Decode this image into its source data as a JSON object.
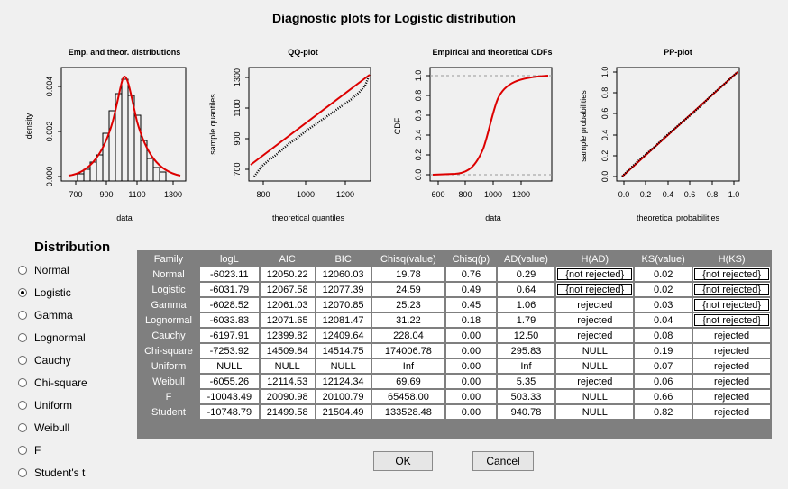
{
  "window": {
    "title": "Diagnostic plots for Logistic distribution"
  },
  "plots": [
    {
      "title": "Emp. and theor. distributions",
      "xlabel": "data",
      "ylabel": "density",
      "xticks": [
        "700",
        "900",
        "1100",
        "1300"
      ],
      "yticks": [
        "0.000",
        "0.002",
        "0.004"
      ]
    },
    {
      "title": "QQ-plot",
      "xlabel": "theoretical quantiles",
      "ylabel": "sample quantiles",
      "xticks": [
        "800",
        "1000",
        "1200"
      ],
      "yticks": [
        "700",
        "900",
        "1100",
        "1300"
      ]
    },
    {
      "title": "Empirical and theoretical CDFs",
      "xlabel": "data",
      "ylabel": "CDF",
      "xticks": [
        "600",
        "800",
        "1000",
        "1200"
      ],
      "yticks": [
        "0.0",
        "0.2",
        "0.4",
        "0.6",
        "0.8",
        "1.0"
      ]
    },
    {
      "title": "PP-plot",
      "xlabel": "theoretical probabilities",
      "ylabel": "sample probabilities",
      "xticks": [
        "0.0",
        "0.2",
        "0.4",
        "0.6",
        "0.8",
        "1.0"
      ],
      "yticks": [
        "0.0",
        "0.2",
        "0.4",
        "0.6",
        "0.8",
        "1.0"
      ]
    }
  ],
  "distribution": {
    "heading": "Distribution",
    "selected": "Logistic",
    "options": [
      "Normal",
      "Logistic",
      "Gamma",
      "Lognormal",
      "Cauchy",
      "Chi-square",
      "Uniform",
      "Weibull",
      "F",
      "Student's t"
    ]
  },
  "table": {
    "headers": [
      "Family",
      "logL",
      "AIC",
      "BIC",
      "Chisq(value)",
      "Chisq(p)",
      "AD(value)",
      "H(AD)",
      "KS(value)",
      "H(KS)"
    ],
    "rows": [
      [
        "Normal",
        "-6023.11",
        "12050.22",
        "12060.03",
        "19.78",
        "0.76",
        "0.29",
        "{not rejected}",
        "0.02",
        "{not rejected}"
      ],
      [
        "Logistic",
        "-6031.79",
        "12067.58",
        "12077.39",
        "24.59",
        "0.49",
        "0.64",
        "{not rejected}",
        "0.02",
        "{not rejected}"
      ],
      [
        "Gamma",
        "-6028.52",
        "12061.03",
        "12070.85",
        "25.23",
        "0.45",
        "1.06",
        "rejected",
        "0.03",
        "{not rejected}"
      ],
      [
        "Lognormal",
        "-6033.83",
        "12071.65",
        "12081.47",
        "31.22",
        "0.18",
        "1.79",
        "rejected",
        "0.04",
        "{not rejected}"
      ],
      [
        "Cauchy",
        "-6197.91",
        "12399.82",
        "12409.64",
        "228.04",
        "0.00",
        "12.50",
        "rejected",
        "0.08",
        "rejected"
      ],
      [
        "Chi-square",
        "-7253.92",
        "14509.84",
        "14514.75",
        "174006.78",
        "0.00",
        "295.83",
        "NULL",
        "0.19",
        "rejected"
      ],
      [
        "Uniform",
        "NULL",
        "NULL",
        "NULL",
        "Inf",
        "0.00",
        "Inf",
        "NULL",
        "0.07",
        "rejected"
      ],
      [
        "Weibull",
        "-6055.26",
        "12114.53",
        "12124.34",
        "69.69",
        "0.00",
        "5.35",
        "rejected",
        "0.06",
        "rejected"
      ],
      [
        "F",
        "-10043.49",
        "20090.98",
        "20100.79",
        "65458.00",
        "0.00",
        "503.33",
        "NULL",
        "0.66",
        "rejected"
      ],
      [
        "Student",
        "-10748.79",
        "21499.58",
        "21504.49",
        "133528.48",
        "0.00",
        "940.78",
        "NULL",
        "0.82",
        "rejected"
      ]
    ]
  },
  "buttons": {
    "ok": "OK",
    "cancel": "Cancel"
  },
  "colors": {
    "curve": "#dd0000",
    "background": "#f0f0f0",
    "table_bg": "#7f7f7f"
  }
}
